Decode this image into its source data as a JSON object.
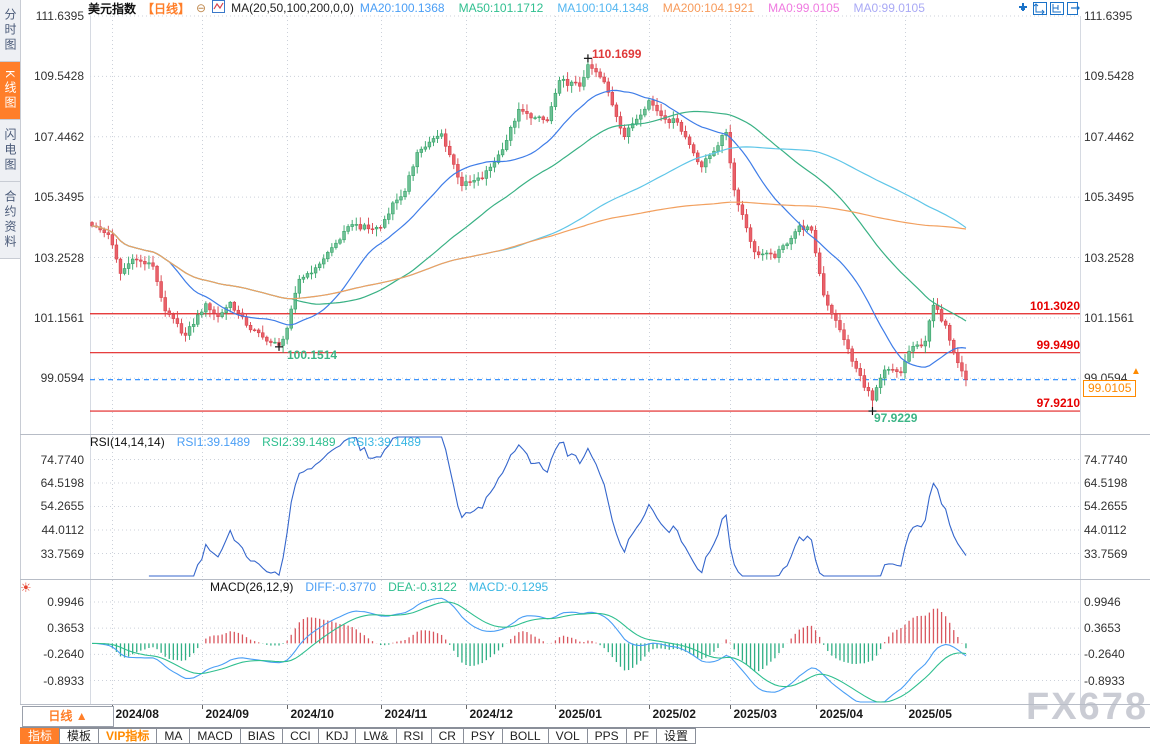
{
  "sidebar": {
    "items": [
      {
        "label": "分时图",
        "active": false
      },
      {
        "label": "K线图",
        "active": true
      },
      {
        "label": "闪电图",
        "active": false
      },
      {
        "label": "合约资料",
        "active": false
      }
    ]
  },
  "header": {
    "title": "美元指数",
    "period_tag": "【日线】",
    "collapse_glyph": "⊖",
    "ma_settings": "MA(20,50,100,200,0,0)",
    "ma_values": [
      {
        "label": "MA20:100.1368",
        "color": "#4a9ef5"
      },
      {
        "label": "MA50:101.1712",
        "color": "#2fbf8f"
      },
      {
        "label": "MA100:104.1348",
        "color": "#54b6f0"
      },
      {
        "label": "MA200:104.1921",
        "color": "#f79a5a"
      },
      {
        "label": "MA0:99.0105",
        "color": "#ef7ae0"
      },
      {
        "label": "MA0:99.0105",
        "color": "#a9a9f5"
      }
    ]
  },
  "rsi_panel": {
    "title": "RSI(14,14,14)",
    "values": [
      {
        "label": "RSI1:39.1489",
        "color": "#4a9ef5"
      },
      {
        "label": "RSI2:39.1489",
        "color": "#2fbf8f"
      },
      {
        "label": "RSI3:39.1489",
        "color": "#38b6e3"
      }
    ]
  },
  "macd_panel": {
    "title": "MACD(26,12,9)",
    "values": [
      {
        "label": "DIFF:-0.3770",
        "color": "#4a9ef5"
      },
      {
        "label": "DEA:-0.3122",
        "color": "#2fbf8f"
      },
      {
        "label": "MACD:-0.1295",
        "color": "#38b6e3"
      }
    ]
  },
  "main_chart": {
    "level_labels": [
      "101.3020",
      "99.9490",
      "97.9210"
    ],
    "annotations": [
      {
        "text": "110.1699",
        "color": "#e03a3a"
      },
      {
        "text": "100.1514",
        "color": "#3cb586"
      },
      {
        "text": "97.9229",
        "color": "#3cb586"
      }
    ],
    "price_tag": {
      "label": "99.0105",
      "arrow": "▲"
    }
  },
  "bottom_toolbar": {
    "period_label": "日线 ▲",
    "tabs": [
      {
        "label": "指标",
        "style": "active"
      },
      {
        "label": "模板",
        "style": ""
      },
      {
        "label": "VIP指标",
        "style": "vip"
      },
      {
        "label": "MA",
        "style": ""
      },
      {
        "label": "MACD",
        "style": ""
      },
      {
        "label": "BIAS",
        "style": ""
      },
      {
        "label": "CCI",
        "style": ""
      },
      {
        "label": "KDJ",
        "style": ""
      },
      {
        "label": "LW&",
        "style": ""
      },
      {
        "label": "RSI",
        "style": ""
      },
      {
        "label": "CR",
        "style": ""
      },
      {
        "label": "PSY",
        "style": ""
      },
      {
        "label": "BOLL",
        "style": ""
      },
      {
        "label": "VOL",
        "style": ""
      },
      {
        "label": "PPS",
        "style": ""
      },
      {
        "label": "PF",
        "style": ""
      },
      {
        "label": "设置",
        "style": ""
      }
    ]
  },
  "watermark": "FX678",
  "chart_data": {
    "type": "candlestick",
    "symbol": "美元指数",
    "period": "日线",
    "start_date": "2024-07-25",
    "end_date": "2025-05-22",
    "main_y_ticks": [
      111.6395,
      109.5428,
      107.4462,
      105.3495,
      103.2528,
      101.1561,
      99.0594
    ],
    "rsi_y_ticks": [
      74.774,
      64.5198,
      54.2655,
      44.0112,
      33.7569
    ],
    "macd_y_ticks": [
      0.9946,
      0.3653,
      -0.264,
      -0.8933
    ],
    "x_tick_labels": [
      "2024/08",
      "2024/09",
      "2024/10",
      "2024/11",
      "2024/12",
      "2025/01",
      "2025/02",
      "2025/03",
      "2025/04",
      "2025/05"
    ],
    "close_anchors": [
      [
        "2024-07-25",
        104.35
      ],
      [
        "2024-07-31",
        104.05
      ],
      [
        "2024-08-02",
        103.2
      ],
      [
        "2024-08-05",
        102.7
      ],
      [
        "2024-08-08",
        103.2
      ],
      [
        "2024-08-15",
        102.95
      ],
      [
        "2024-08-20",
        101.4
      ],
      [
        "2024-08-27",
        100.55
      ],
      [
        "2024-09-03",
        101.65
      ],
      [
        "2024-09-06",
        101.2
      ],
      [
        "2024-09-11",
        101.7
      ],
      [
        "2024-09-17",
        100.9
      ],
      [
        "2024-09-24",
        100.35
      ],
      [
        "2024-09-27",
        100.2
      ],
      [
        "2024-10-01",
        100.8
      ],
      [
        "2024-10-04",
        102.5
      ],
      [
        "2024-10-10",
        102.9
      ],
      [
        "2024-10-17",
        103.75
      ],
      [
        "2024-10-23",
        104.4
      ],
      [
        "2024-10-29",
        104.25
      ],
      [
        "2024-11-01",
        104.3
      ],
      [
        "2024-11-06",
        105.15
      ],
      [
        "2024-11-11",
        105.55
      ],
      [
        "2024-11-14",
        106.9
      ],
      [
        "2024-11-22",
        107.55
      ],
      [
        "2024-11-29",
        105.75
      ],
      [
        "2024-12-06",
        106.0
      ],
      [
        "2024-12-13",
        107.0
      ],
      [
        "2024-12-19",
        108.4
      ],
      [
        "2024-12-24",
        108.1
      ],
      [
        "2024-12-30",
        108.0
      ],
      [
        "2025-01-02",
        109.4
      ],
      [
        "2025-01-09",
        109.2
      ],
      [
        "2025-01-13",
        109.95
      ],
      [
        "2025-01-17",
        109.35
      ],
      [
        "2025-01-24",
        107.45
      ],
      [
        "2025-01-28",
        107.9
      ],
      [
        "2025-02-03",
        108.7
      ],
      [
        "2025-02-07",
        108.05
      ],
      [
        "2025-02-12",
        107.95
      ],
      [
        "2025-02-20",
        106.4
      ],
      [
        "2025-02-28",
        107.6
      ],
      [
        "2025-03-04",
        105.6
      ],
      [
        "2025-03-11",
        103.45
      ],
      [
        "2025-03-18",
        103.25
      ],
      [
        "2025-03-26",
        104.35
      ],
      [
        "2025-03-31",
        104.2
      ],
      [
        "2025-04-03",
        101.95
      ],
      [
        "2025-04-10",
        100.4
      ],
      [
        "2025-04-14",
        99.65
      ],
      [
        "2025-04-21",
        98.3
      ],
      [
        "2025-04-24",
        99.35
      ],
      [
        "2025-04-30",
        99.25
      ],
      [
        "2025-05-02",
        100.0
      ],
      [
        "2025-05-08",
        100.35
      ],
      [
        "2025-05-12",
        101.6
      ],
      [
        "2025-05-15",
        100.9
      ],
      [
        "2025-05-20",
        99.6
      ],
      [
        "2025-05-22",
        99.01
      ]
    ],
    "key_points": {
      "high": {
        "date": "2025-01-13",
        "price": 110.1699
      },
      "low_sep": {
        "date": "2024-09-27",
        "price": 100.1514
      },
      "low_apr": {
        "date": "2025-04-21",
        "price": 97.9229
      },
      "last_close": 99.0105
    },
    "horizontal_levels": [
      101.302,
      99.949,
      97.921
    ],
    "current_price": 99.0105,
    "ma_periods": [
      20,
      50,
      100,
      200
    ],
    "rsi_period": 14,
    "rsi_last": 39.1489,
    "macd_params": [
      26,
      12,
      9
    ],
    "macd_last": {
      "diff": -0.377,
      "dea": -0.3122,
      "macd": -0.1295
    },
    "colors": {
      "up": "#33a467",
      "up_fill": "#6fc096",
      "down": "#d8434c",
      "down_fill": "#e9616a",
      "ma20": "#3f7de8",
      "ma50": "#39b184",
      "ma100": "#5fc6e8",
      "ma200": "#f2a05f",
      "rsi_line": "#3566cc",
      "diff_line": "#4a9ef5",
      "dea_line": "#2fbf8f",
      "hist_pos": "#d9565e",
      "hist_neg": "#2faf84",
      "level_line": "#e22222",
      "current_dashed": "#2288ff",
      "grid": "#ccd1da",
      "accent_orange": "#ff7e29"
    }
  }
}
